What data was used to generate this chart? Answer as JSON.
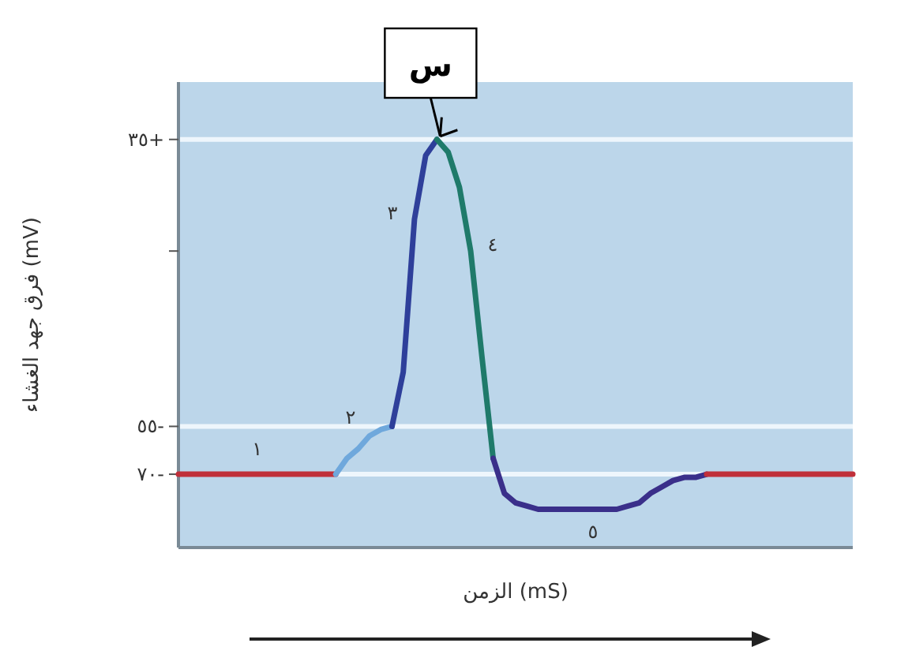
{
  "chart_data": {
    "type": "line",
    "ylabel": "فرق جهد الغشاء (mV)",
    "xlabel": "الزمن (mS)",
    "categories": [
      null,
      null,
      null,
      null,
      null,
      null,
      null,
      null,
      null,
      null,
      null,
      null,
      null,
      null,
      null,
      null,
      null,
      null,
      null,
      null,
      null,
      null,
      null,
      null,
      null,
      null,
      null,
      null,
      null,
      null,
      null,
      null,
      null,
      null,
      null,
      null,
      null,
      null,
      null,
      null,
      null,
      null,
      null,
      null,
      null,
      null,
      null,
      null,
      null,
      null,
      null,
      null,
      null,
      null,
      null,
      null,
      null,
      null,
      null,
      null,
      null
    ],
    "series": [
      {
        "color": "#c0303a",
        "values": [
          -70,
          -70,
          -70,
          -70,
          -70,
          -70,
          -70,
          -70,
          -70,
          -70,
          -70,
          -70,
          -70,
          -70,
          -70,
          null,
          null,
          null,
          null,
          null,
          null,
          null,
          null,
          null,
          null,
          null,
          null,
          null,
          null,
          null,
          null,
          null,
          null,
          null,
          null,
          null,
          null,
          null,
          null,
          null,
          null,
          null,
          null,
          null,
          null,
          null,
          null,
          null,
          null,
          null,
          null,
          null,
          null,
          null,
          null,
          null,
          null,
          null,
          null,
          null,
          null
        ]
      },
      {
        "color": "#6fa8dc",
        "values": [
          null,
          null,
          null,
          null,
          null,
          null,
          null,
          null,
          null,
          null,
          null,
          null,
          null,
          null,
          -70,
          -65,
          -62,
          -58,
          -56,
          -55,
          null,
          null,
          null,
          null,
          null,
          null,
          null,
          null,
          null,
          null,
          null,
          null,
          null,
          null,
          null,
          null,
          null,
          null,
          null,
          null,
          null,
          null,
          null,
          null,
          null,
          null,
          null,
          null,
          null,
          null,
          null,
          null,
          null,
          null,
          null,
          null,
          null,
          null,
          null,
          null,
          null
        ]
      },
      {
        "color": "#2e3f9a",
        "values": [
          null,
          null,
          null,
          null,
          null,
          null,
          null,
          null,
          null,
          null,
          null,
          null,
          null,
          null,
          null,
          null,
          null,
          null,
          null,
          -55,
          -38,
          10,
          30,
          35,
          null,
          null,
          null,
          null,
          null,
          null,
          null,
          null,
          null,
          null,
          null,
          null,
          null,
          null,
          null,
          null,
          null,
          null,
          null,
          null,
          null,
          null,
          null,
          null,
          null,
          null,
          null,
          null,
          null,
          null,
          null,
          null,
          null,
          null,
          null,
          null,
          null
        ]
      },
      {
        "color": "#1f7a6a",
        "values": [
          null,
          null,
          null,
          null,
          null,
          null,
          null,
          null,
          null,
          null,
          null,
          null,
          null,
          null,
          null,
          null,
          null,
          null,
          null,
          null,
          null,
          null,
          null,
          35,
          31,
          20,
          0,
          -33,
          -65,
          null,
          null,
          null,
          null,
          null,
          null,
          null,
          null,
          null,
          null,
          null,
          null,
          null,
          null,
          null,
          null,
          null,
          null,
          null,
          null,
          null,
          null,
          null,
          null,
          null,
          null,
          null,
          null,
          null,
          null,
          null,
          null
        ]
      },
      {
        "color": "#3a2f8a",
        "values": [
          null,
          null,
          null,
          null,
          null,
          null,
          null,
          null,
          null,
          null,
          null,
          null,
          null,
          null,
          null,
          null,
          null,
          null,
          null,
          null,
          null,
          null,
          null,
          null,
          null,
          null,
          null,
          null,
          -65,
          -76,
          -79,
          -80,
          -81,
          -81,
          -81,
          -81,
          -81,
          -81,
          -81,
          -81,
          -80,
          -79,
          -76,
          -74,
          -72,
          -71,
          -71,
          -70,
          null,
          null,
          null,
          null,
          null,
          null,
          null,
          null,
          null,
          null,
          null,
          null,
          null
        ]
      },
      {
        "color": "#c0303a",
        "values": [
          null,
          null,
          null,
          null,
          null,
          null,
          null,
          null,
          null,
          null,
          null,
          null,
          null,
          null,
          null,
          null,
          null,
          null,
          null,
          null,
          null,
          null,
          null,
          null,
          null,
          null,
          null,
          null,
          null,
          null,
          null,
          null,
          null,
          null,
          null,
          null,
          null,
          null,
          null,
          null,
          null,
          null,
          null,
          null,
          null,
          null,
          null,
          -70,
          -70,
          -70,
          -70,
          -70,
          -70,
          -70,
          -70,
          -70,
          -70,
          -70,
          -70,
          -70,
          -70
        ]
      }
    ],
    "ylim": [
      -93,
      53
    ],
    "yticks": [
      {
        "value": -70,
        "label": "٧٠-"
      },
      {
        "value": -55,
        "label": "٥٥-"
      },
      {
        "value": 0,
        "label": null
      },
      {
        "value": 35,
        "label": "٣٥+"
      }
    ],
    "grid": "y",
    "annotations": [
      "١",
      "٢",
      "٣",
      "٤",
      "٥",
      {
        "text": "س",
        "y": 35
      }
    ]
  }
}
